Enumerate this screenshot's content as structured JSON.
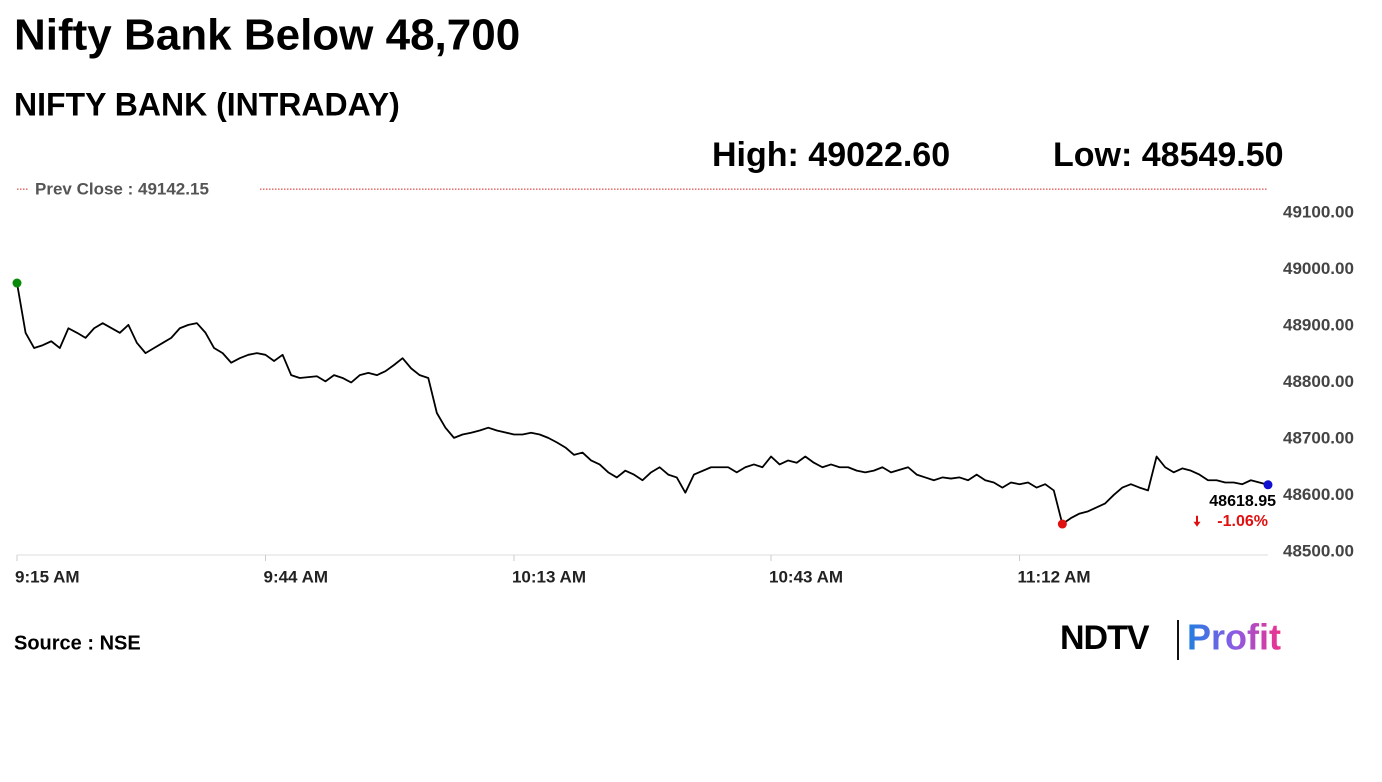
{
  "chart_data": {
    "type": "line",
    "title": "Nifty Bank Below 48,700",
    "subtitle": "NIFTY BANK (INTRADAY)",
    "high_label": "High: 49022.60",
    "low_label": "Low: 48549.50",
    "prev_close": 49142.15,
    "prev_close_label": "Prev Close : 49142.15",
    "prev_close_color": "#d62020",
    "change_label": "-1.06%",
    "source": "Source : NSE",
    "brand": [
      "NDTV",
      "Profit"
    ],
    "marker_colors": {
      "open": "#0a8a0a",
      "low": "#e01010",
      "last": "#1010d0"
    },
    "x": [
      "9:15 AM",
      "9:16 AM",
      "9:17 AM",
      "9:18 AM",
      "9:19 AM",
      "9:20 AM",
      "9:21 AM",
      "9:22 AM",
      "9:23 AM",
      "9:24 AM",
      "9:25 AM",
      "9:27 AM",
      "9:28 AM",
      "9:29 AM",
      "9:30 AM",
      "9:31 AM",
      "9:32 AM",
      "9:33 AM",
      "9:34 AM",
      "9:35 AM",
      "9:36 AM",
      "9:37 AM",
      "9:38 AM",
      "9:39 AM",
      "9:40 AM",
      "9:41 AM",
      "9:42 AM",
      "9:43 AM",
      "9:44 AM",
      "9:45 AM",
      "9:46 AM",
      "9:47 AM",
      "9:48 AM",
      "9:50 AM",
      "9:51 AM",
      "9:52 AM",
      "9:53 AM",
      "9:54 AM",
      "9:55 AM",
      "9:56 AM",
      "9:57 AM",
      "9:58 AM",
      "9:59 AM",
      "10:00 AM",
      "10:01 AM",
      "10:02 AM",
      "10:03 AM",
      "10:04 AM",
      "10:05 AM",
      "10:06 AM",
      "10:07 AM",
      "10:08 AM",
      "10:09 AM",
      "10:10 AM",
      "10:11 AM",
      "10:13 AM",
      "10:14 AM",
      "10:15 AM",
      "10:16 AM",
      "10:17 AM",
      "10:18 AM",
      "10:19 AM",
      "10:20 AM",
      "10:21 AM",
      "10:22 AM",
      "10:23 AM",
      "10:24 AM",
      "10:25 AM",
      "10:26 AM",
      "10:27 AM",
      "10:28 AM",
      "10:29 AM",
      "10:30 AM",
      "10:31 AM",
      "10:32 AM",
      "10:33 AM",
      "10:34 AM",
      "10:36 AM",
      "10:37 AM",
      "10:38 AM",
      "10:39 AM",
      "10:40 AM",
      "10:41 AM",
      "10:42 AM",
      "10:43 AM",
      "10:44 AM",
      "10:45 AM",
      "10:46 AM",
      "10:47 AM",
      "10:48 AM",
      "10:49 AM",
      "10:50 AM",
      "10:51 AM",
      "10:52 AM",
      "10:53 AM",
      "10:54 AM",
      "10:55 AM",
      "10:56 AM",
      "10:57 AM",
      "10:59 AM",
      "11:00 AM",
      "11:01 AM",
      "11:02 AM",
      "11:03 AM",
      "11:04 AM",
      "11:05 AM",
      "11:06 AM",
      "11:07 AM",
      "11:08 AM",
      "11:09 AM",
      "11:10 AM",
      "11:11 AM",
      "11:12 AM",
      "11:13 AM",
      "11:14 AM",
      "11:15 AM",
      "11:16 AM",
      "11:17 AM",
      "11:18 AM",
      "11:19 AM",
      "11:20 AM",
      "11:22 AM",
      "11:23 AM",
      "11:24 AM",
      "11:25 AM",
      "11:26 AM",
      "11:27 AM",
      "11:28 AM",
      "11:29 AM",
      "11:30 AM",
      "11:31 AM",
      "11:32 AM",
      "11:33 AM",
      "11:34 AM",
      "11:35 AM",
      "11:36 AM",
      "11:37 AM",
      "11:38 AM",
      "11:39 AM",
      "11:40 AM",
      "11:41 AM"
    ],
    "series": [
      {
        "name": "NIFTY BANK",
        "color": "#000000",
        "values": [
          48976,
          48888,
          48861,
          48866,
          48873,
          48861,
          48896,
          48888,
          48879,
          48896,
          48905,
          48888,
          48902,
          48870,
          48852,
          48861,
          48870,
          48879,
          48896,
          48902,
          48905,
          48888,
          48861,
          48852,
          48835,
          48843,
          48849,
          48852,
          48849,
          48838,
          48849,
          48813,
          48808,
          48811,
          48802,
          48813,
          48808,
          48800,
          48813,
          48817,
          48813,
          48820,
          48831,
          48843,
          48825,
          48813,
          48808,
          48746,
          48720,
          48702,
          48708,
          48711,
          48715,
          48720,
          48715,
          48708,
          48708,
          48711,
          48708,
          48702,
          48694,
          48685,
          48672,
          48676,
          48662,
          48655,
          48641,
          48632,
          48644,
          48637,
          48627,
          48641,
          48650,
          48637,
          48632,
          48605,
          48637,
          48650,
          48650,
          48650,
          48641,
          48650,
          48655,
          48650,
          48669,
          48655,
          48662,
          48658,
          48669,
          48658,
          48650,
          48655,
          48650,
          48650,
          48644,
          48641,
          48644,
          48650,
          48641,
          48650,
          48637,
          48632,
          48627,
          48632,
          48630,
          48632,
          48627,
          48637,
          48627,
          48623,
          48614,
          48623,
          48620,
          48623,
          48614,
          48620,
          48609,
          48549.5,
          48560,
          48568,
          48572,
          48586,
          48601,
          48614,
          48620,
          48614,
          48609,
          48669,
          48650,
          48641,
          48648,
          48644,
          48637,
          48627,
          48627,
          48623,
          48623,
          48620,
          48627,
          48623,
          48618.95
        ]
      }
    ],
    "xlim": [
      "9:15 AM",
      "11:41 AM"
    ],
    "xticks": [
      "9:15 AM",
      "9:44 AM",
      "10:13 AM",
      "10:43 AM",
      "11:12 AM"
    ],
    "ylim": [
      48500,
      49100
    ],
    "yticks": [
      {
        "value": 48500,
        "label": "48500.00"
      },
      {
        "value": 48600,
        "label": "48600.00"
      },
      {
        "value": 48700,
        "label": "48700.00"
      },
      {
        "value": 48800,
        "label": "48800.00"
      },
      {
        "value": 48900,
        "label": "48900.00"
      },
      {
        "value": 49000,
        "label": "49000.00"
      },
      {
        "value": 49100,
        "label": "49100.00"
      }
    ],
    "grid": false
  }
}
